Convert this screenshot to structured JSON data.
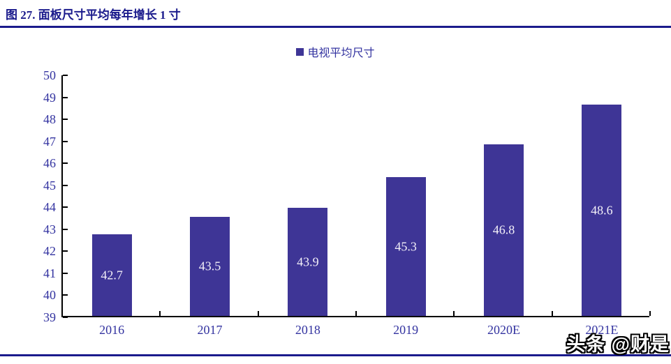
{
  "page": {
    "title": "图 27. 面板尺寸平均每年增长 1 寸",
    "watermark": "头条 @财是"
  },
  "colors": {
    "navy_rule": "#1A1A8C",
    "bar_fill": "#3E3596",
    "axis_text": "#3333A0",
    "axis_line": "#000000",
    "bar_value_label": "#F3F0F8"
  },
  "chart_data": {
    "type": "bar",
    "title": "图 27. 面板尺寸平均每年增长 1 寸",
    "legend": {
      "label": "电视平均尺寸",
      "position": "top-center",
      "marker": "square"
    },
    "categories": [
      "2016",
      "2017",
      "2018",
      "2019",
      "2020E",
      "2021E"
    ],
    "values": [
      42.7,
      43.5,
      43.9,
      45.3,
      46.8,
      48.6
    ],
    "value_labels": [
      "42.7",
      "43.5",
      "43.9",
      "45.3",
      "46.8",
      "48.6"
    ],
    "value_label_position": "inside-center",
    "xlabel": "",
    "ylabel": "",
    "ylim": [
      39,
      50
    ],
    "yticks": [
      39,
      40,
      41,
      42,
      43,
      44,
      45,
      46,
      47,
      48,
      49,
      50
    ],
    "grid": false
  }
}
